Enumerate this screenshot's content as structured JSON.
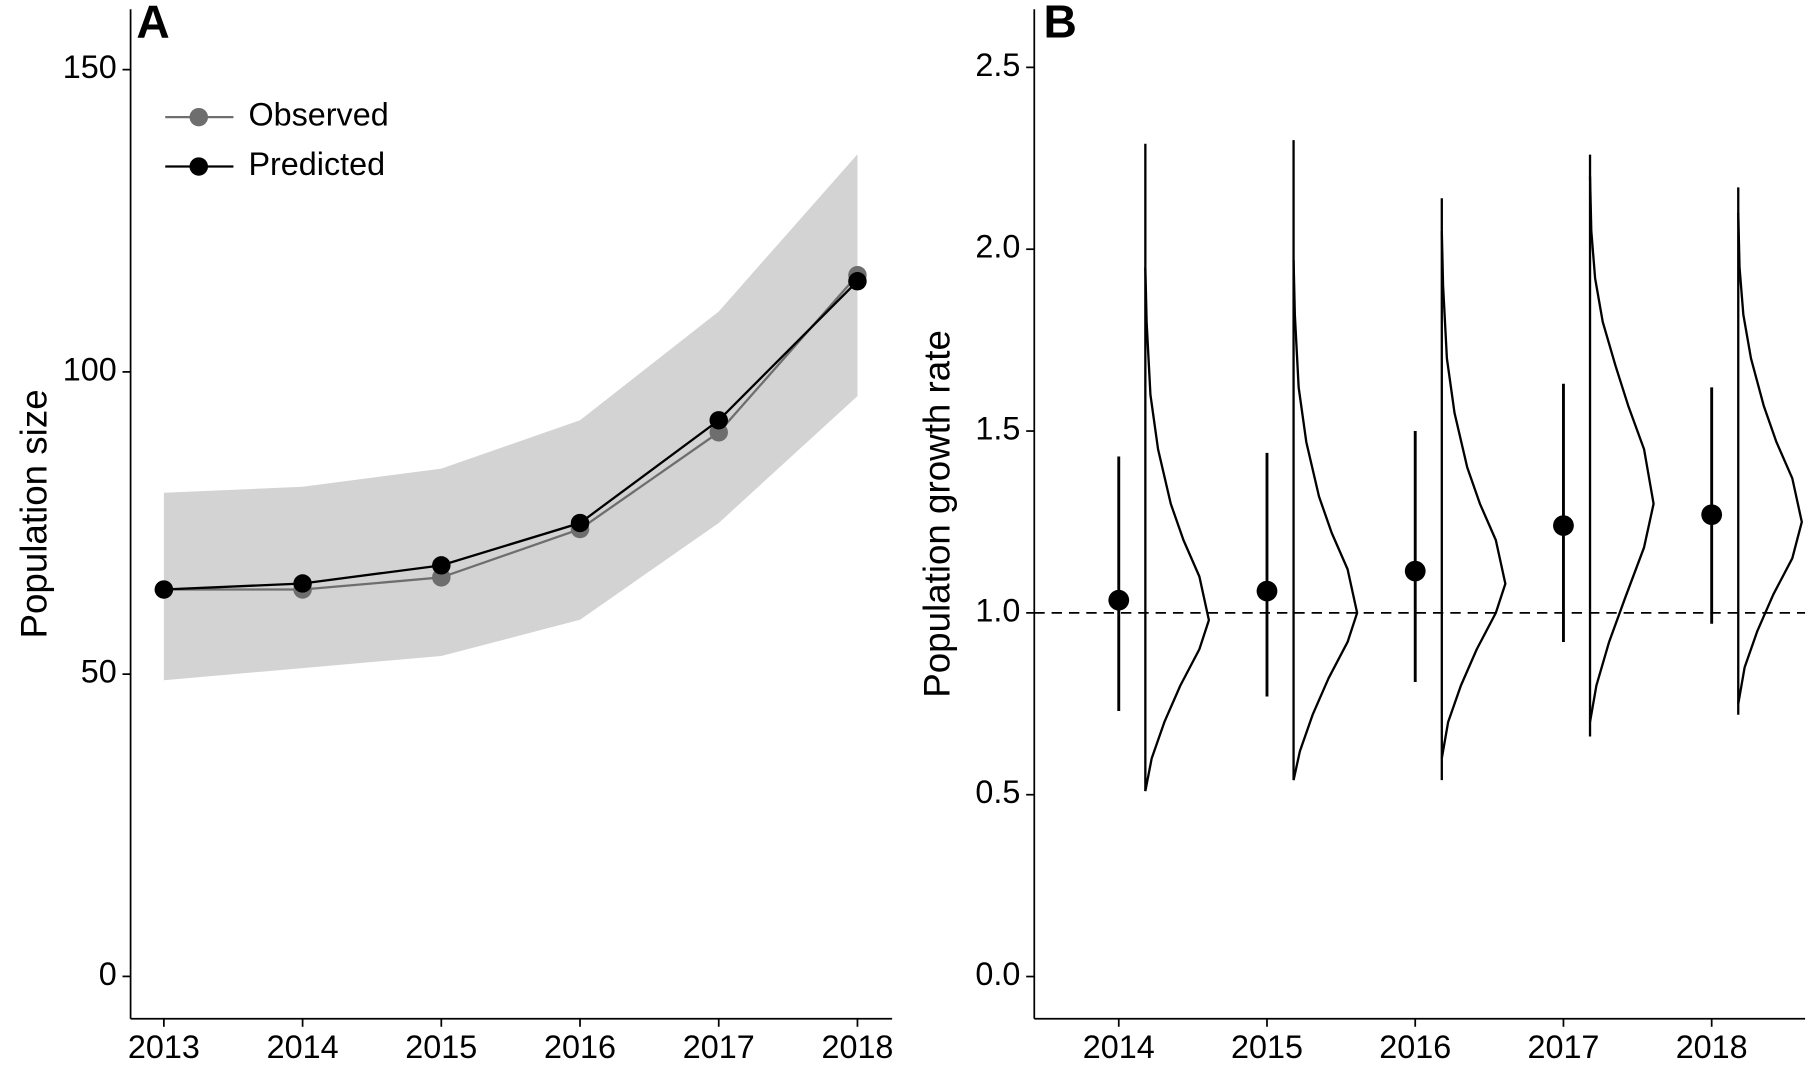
{
  "chart_data": [
    {
      "type": "line",
      "tag": "A",
      "y_label": "Population size",
      "x": [
        2013,
        2014,
        2015,
        2016,
        2017,
        2018
      ],
      "band": {
        "color": "#d3d3d3",
        "lower": [
          49,
          51,
          53,
          59,
          75,
          96
        ],
        "upper": [
          80,
          81,
          84,
          92,
          110,
          136
        ]
      },
      "series": [
        {
          "name": "Observed",
          "color": "#6e6e6e",
          "values": [
            64,
            64,
            66,
            74,
            90,
            116
          ]
        },
        {
          "name": "Predicted",
          "color": "#000000",
          "values": [
            64,
            65,
            68,
            75,
            92,
            115
          ]
        }
      ],
      "xlim": [
        2012.76,
        2018.25
      ],
      "xticks": [
        2013,
        2014,
        2015,
        2016,
        2017,
        2018
      ],
      "ylim": [
        -7,
        160
      ],
      "yticks": [
        0,
        50,
        100,
        150
      ],
      "legend": "top-left"
    },
    {
      "type": "pointrange",
      "tag": "B",
      "y_label": "Population growth rate",
      "categories": [
        "2014",
        "2015",
        "2016",
        "2017",
        "2018"
      ],
      "values": [
        1.035,
        1.06,
        1.115,
        1.24,
        1.27
      ],
      "lower": [
        0.73,
        0.77,
        0.81,
        0.92,
        0.97
      ],
      "upper": [
        1.43,
        1.44,
        1.5,
        1.63,
        1.62
      ],
      "color": "#000000",
      "density": [
        {
          "range": [
            0.51,
            2.29
          ],
          "y": [
            0.51,
            0.6,
            0.7,
            0.8,
            0.9,
            0.98,
            1.1,
            1.2,
            1.3,
            1.45,
            1.6,
            1.8,
            1.95
          ],
          "width": [
            0,
            0.1,
            0.3,
            0.55,
            0.85,
            1,
            0.85,
            0.6,
            0.4,
            0.2,
            0.08,
            0.02,
            0
          ]
        },
        {
          "range": [
            0.54,
            2.3
          ],
          "y": [
            0.54,
            0.62,
            0.72,
            0.82,
            0.92,
            1.0,
            1.12,
            1.22,
            1.32,
            1.47,
            1.62,
            1.82,
            1.97
          ],
          "width": [
            0,
            0.1,
            0.3,
            0.55,
            0.85,
            1,
            0.85,
            0.6,
            0.4,
            0.2,
            0.08,
            0.02,
            0
          ]
        },
        {
          "range": [
            0.54,
            2.14
          ],
          "y": [
            0.6,
            0.7,
            0.8,
            0.9,
            1.0,
            1.08,
            1.2,
            1.3,
            1.4,
            1.55,
            1.7,
            1.9,
            2.05
          ],
          "width": [
            0,
            0.1,
            0.3,
            0.55,
            0.85,
            1,
            0.85,
            0.6,
            0.4,
            0.2,
            0.08,
            0.02,
            0
          ]
        },
        {
          "range": [
            0.66,
            2.26
          ],
          "y": [
            0.7,
            0.8,
            0.92,
            1.04,
            1.18,
            1.3,
            1.45,
            1.57,
            1.68,
            1.8,
            1.92,
            2.05,
            2.2
          ],
          "width": [
            0,
            0.1,
            0.3,
            0.55,
            0.85,
            1,
            0.85,
            0.6,
            0.4,
            0.2,
            0.08,
            0.02,
            0
          ]
        },
        {
          "range": [
            0.72,
            2.17
          ],
          "y": [
            0.75,
            0.85,
            0.95,
            1.05,
            1.15,
            1.25,
            1.37,
            1.47,
            1.57,
            1.7,
            1.82,
            1.95,
            2.1
          ],
          "width": [
            0,
            0.1,
            0.3,
            0.55,
            0.85,
            1,
            0.85,
            0.6,
            0.4,
            0.2,
            0.08,
            0.02,
            0
          ]
        }
      ],
      "hline": 1,
      "ylim": [
        -0.116,
        2.66
      ],
      "yticks": [
        {
          "value": 0,
          "label": "0.0"
        },
        0.5,
        {
          "value": 1,
          "label": "1.0"
        },
        1.5,
        {
          "value": 2,
          "label": "2.0"
        },
        2.5
      ]
    }
  ]
}
